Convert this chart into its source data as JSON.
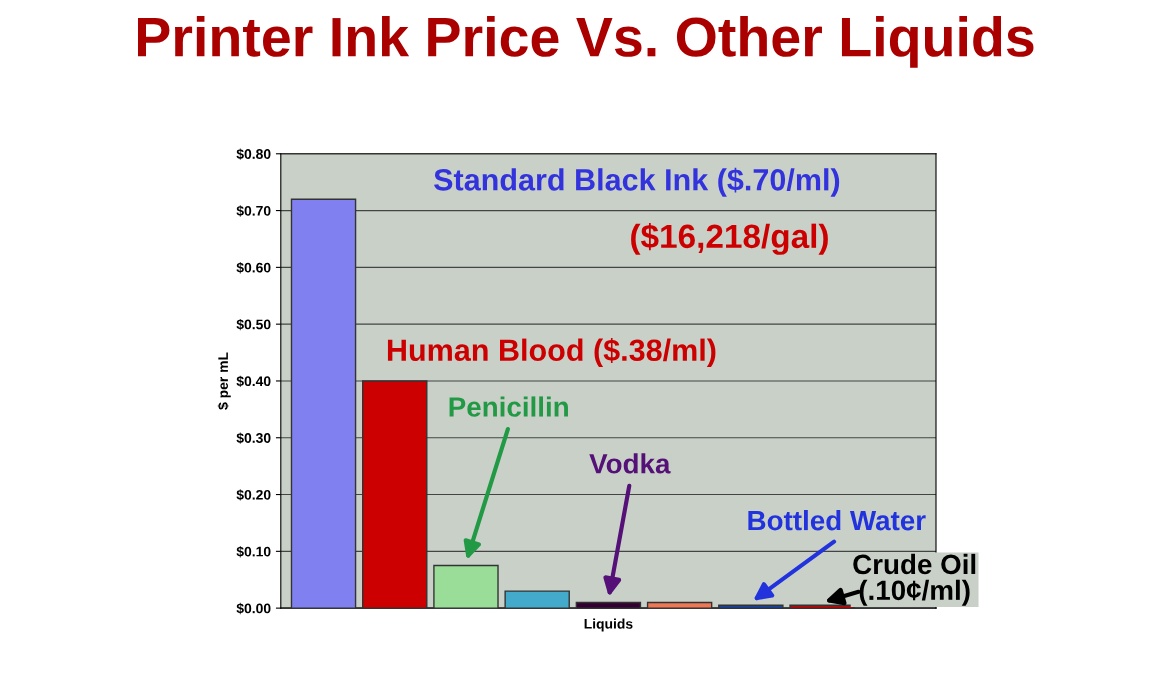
{
  "chart_data": {
    "type": "bar",
    "title": "Printer Ink Price Vs. Other Liquids",
    "xlabel": "Liquids",
    "ylabel": "$ per mL",
    "categories": [
      null,
      null,
      null,
      null,
      null,
      null,
      null,
      null
    ],
    "values": [
      0.72,
      0.4,
      0.075,
      0.03,
      0.01,
      0.01,
      0.005,
      0.005
    ],
    "colors": [
      "#8080f0",
      "#cc0000",
      "#99dd99",
      "#44aacc",
      "#330033",
      "#ee7755",
      "#1144aa",
      "#cc0000"
    ],
    "ylim": [
      0,
      0.8
    ],
    "yticks": [
      {
        "value": 0,
        "label": "$0.00"
      },
      {
        "value": 0.1,
        "label": "$0.10"
      },
      {
        "value": 0.2,
        "label": "$0.20"
      },
      {
        "value": 0.3,
        "label": "$0.30"
      },
      {
        "value": 0.4,
        "label": "$0.40"
      },
      {
        "value": 0.5,
        "label": "$0.50"
      },
      {
        "value": 0.6,
        "label": "$0.60"
      },
      {
        "value": 0.7,
        "label": "$0.70"
      },
      {
        "value": 0.8,
        "label": "$0.80"
      }
    ],
    "grid": "y",
    "legend": false,
    "annotations": [
      "Standard Black Ink ($.70/ml)",
      "($16,218/gal)",
      "Human Blood ($.38/ml)",
      "Penicillin",
      "Vodka",
      "Bottled Water",
      "Crude Oil\n(.10¢/ml)"
    ]
  }
}
